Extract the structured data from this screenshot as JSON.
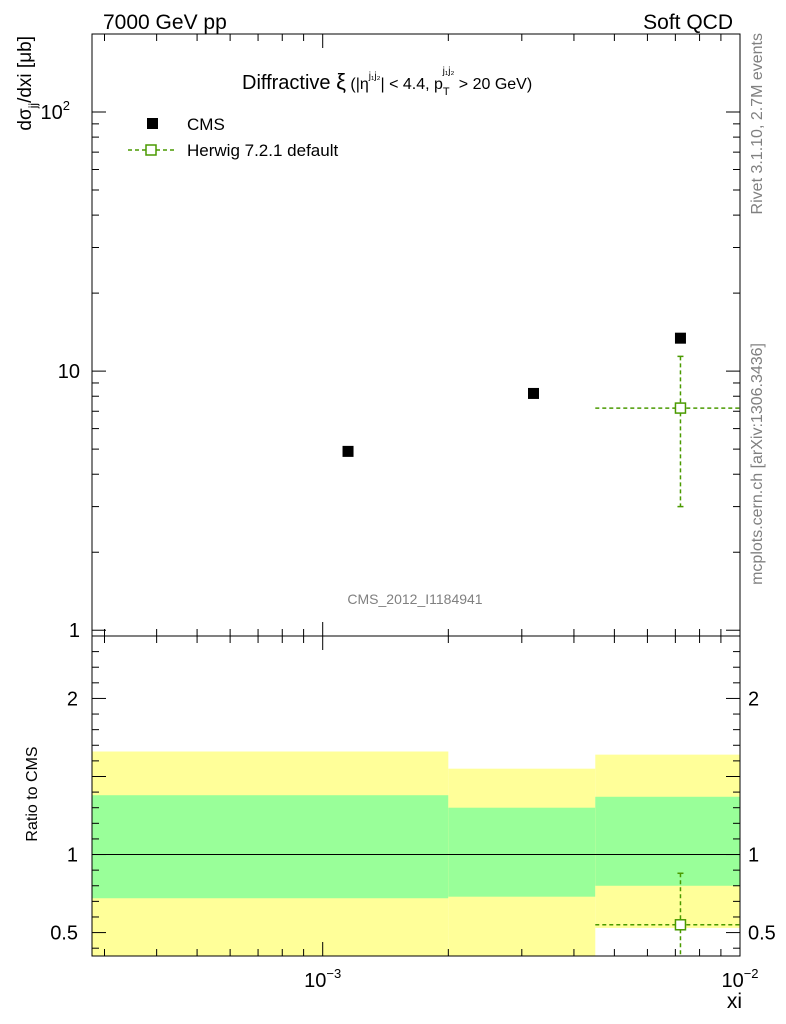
{
  "header": {
    "left": "7000 GeV pp",
    "right": "Soft QCD"
  },
  "side_labels": {
    "rivet": "Rivet 3.1.10,  2.7M events",
    "mcplots": "mcplots.cern.ch [arXiv:1306.3436]"
  },
  "colors": {
    "cms": "#000000",
    "herwig": "#4a9a00",
    "band_outer": "#ffff99",
    "band_inner": "#99ff99"
  },
  "chart_data": [
    {
      "type": "scatter",
      "title_main": "Diffractive ",
      "title_xi": "ξ",
      "title_cut1": " (|η",
      "title_sup1": "j₁j₂",
      "title_cut2": "| < 4.4, p",
      "title_sub2": "T",
      "title_sup2": "j₁j₂",
      "title_cut3": " > 20 GeV)",
      "ylabel_main": "dσ",
      "ylabel_sub": "jj",
      "ylabel_rest": "/dxi [μb]",
      "analysis_id": "CMS_2012_I1184941",
      "xscale": "log",
      "yscale": "log",
      "xlim": [
        0.00028,
        0.01
      ],
      "ylim": [
        0.95,
        200
      ],
      "yticks": [
        {
          "value": 1,
          "label": "1"
        },
        {
          "value": 10,
          "label": "10"
        },
        {
          "value": 100,
          "label": "10",
          "sup": "2"
        }
      ],
      "legend_placement": "top-left",
      "series": [
        {
          "name": "CMS",
          "marker": "filled-square",
          "points": [
            {
              "x": 0.00115,
              "y": 4.9
            },
            {
              "x": 0.0032,
              "y": 8.2
            },
            {
              "x": 0.0072,
              "y": 13.4
            }
          ]
        },
        {
          "name": "Herwig 7.2.1 default",
          "marker": "open-square",
          "points": [
            {
              "x": 0.0072,
              "y": 7.2,
              "xlo": 0.0045,
              "xhi": 0.01,
              "ylo": 3.0,
              "yhi": 11.4
            }
          ]
        }
      ]
    },
    {
      "type": "scatter",
      "ylabel": "Ratio to CMS",
      "xlabel": "xi",
      "xscale": "log",
      "xlim": [
        0.00028,
        0.01
      ],
      "ylim": [
        0.35,
        2.4
      ],
      "yticks": [
        {
          "value": 0.5,
          "label": "0.5"
        },
        {
          "value": 1,
          "label": "1"
        },
        {
          "value": 2,
          "label": "2"
        }
      ],
      "xticks": [
        {
          "value": 0.001,
          "label": "10",
          "sup": "−3"
        },
        {
          "value": 0.01,
          "label": "10",
          "sup": "−2"
        }
      ],
      "bands": [
        {
          "xlo": 0.00028,
          "xhi": 0.002,
          "outer": [
            0.35,
            1.66
          ],
          "inner": [
            0.72,
            1.38
          ]
        },
        {
          "xlo": 0.002,
          "xhi": 0.0045,
          "outer": [
            0.35,
            1.55
          ],
          "inner": [
            0.73,
            1.3
          ]
        },
        {
          "xlo": 0.0045,
          "xhi": 0.01,
          "outer": [
            0.53,
            1.64
          ],
          "inner": [
            0.8,
            1.37
          ]
        }
      ],
      "series": [
        {
          "name": "Herwig 7.2.1 default",
          "marker": "open-square",
          "points": [
            {
              "x": 0.0072,
              "y": 0.55,
              "xlo": 0.0045,
              "xhi": 0.01,
              "ylo": 0.35,
              "yhi": 0.88
            }
          ]
        }
      ]
    }
  ]
}
